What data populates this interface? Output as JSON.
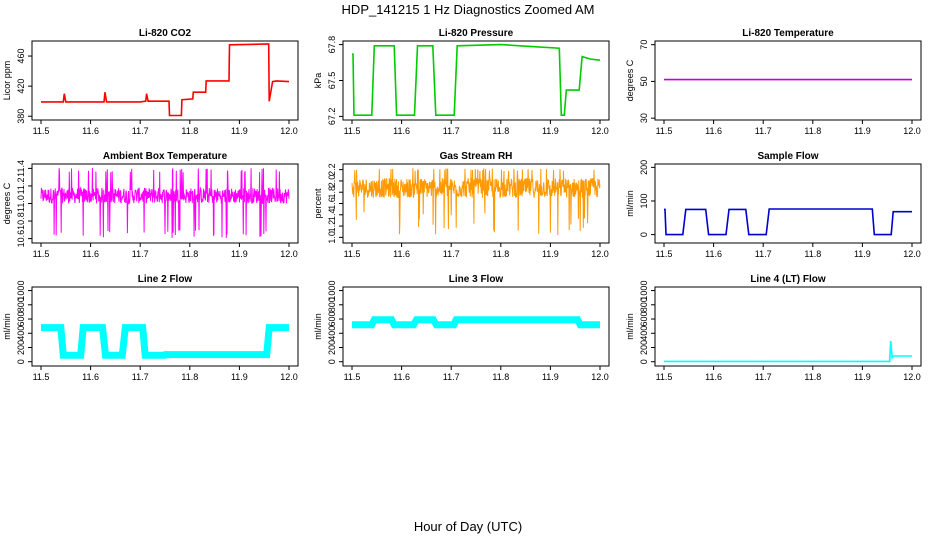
{
  "figure": {
    "title": "HDP_141215  1 Hz Diagnostics Zoomed AM",
    "xlabel": "Hour of Day (UTC)"
  },
  "chart_data": [
    {
      "type": "line",
      "title": "Li-820 CO2",
      "ylabel": "Licor ppm",
      "color": "#ff0000",
      "xlim": [
        11.5,
        12.0
      ],
      "ylim": [
        375,
        480
      ],
      "xticks": [
        11.5,
        11.6,
        11.7,
        11.8,
        11.9,
        12.0
      ],
      "xtick_labels": [
        "11.5",
        "11.6",
        "11.7",
        "11.8",
        "11.9",
        "12.0"
      ],
      "yticks": [
        380,
        420,
        460
      ],
      "ytick_labels": [
        "380",
        "420",
        "460"
      ],
      "x": [
        11.5,
        11.545,
        11.547,
        11.55,
        11.6,
        11.627,
        11.629,
        11.632,
        11.7,
        11.711,
        11.713,
        11.716,
        11.758,
        11.759,
        11.783,
        11.784,
        11.806,
        11.807,
        11.832,
        11.833,
        11.879,
        11.88,
        11.959,
        11.96,
        11.967,
        11.975,
        12.0
      ],
      "values": [
        399,
        399,
        410,
        399,
        399,
        399,
        412,
        399,
        399,
        400,
        410,
        400,
        400,
        381,
        381,
        402,
        403,
        412,
        412,
        427,
        427,
        475,
        476,
        400,
        426,
        427,
        426
      ]
    },
    {
      "type": "line",
      "title": "Li-820 Pressure",
      "ylabel": "kPa",
      "color": "#00cc00",
      "xlim": [
        11.5,
        12.0
      ],
      "ylim": [
        67.17,
        67.83
      ],
      "xticks": [
        11.5,
        11.6,
        11.7,
        11.8,
        11.9,
        12.0
      ],
      "xtick_labels": [
        "11.5",
        "11.6",
        "11.7",
        "11.8",
        "11.9",
        "12.0"
      ],
      "yticks": [
        67.2,
        67.5,
        67.8
      ],
      "ytick_labels": [
        "67.2",
        "67.5",
        "67.8"
      ],
      "x": [
        11.5,
        11.502,
        11.504,
        11.54,
        11.545,
        11.585,
        11.59,
        11.626,
        11.632,
        11.663,
        11.669,
        11.706,
        11.712,
        11.8,
        11.918,
        11.922,
        11.928,
        11.932,
        11.958,
        11.964,
        11.98,
        12.0
      ],
      "values": [
        67.72,
        67.72,
        67.21,
        67.21,
        67.79,
        67.79,
        67.21,
        67.21,
        67.79,
        67.79,
        67.21,
        67.21,
        67.79,
        67.8,
        67.77,
        67.21,
        67.21,
        67.42,
        67.42,
        67.7,
        67.68,
        67.67
      ]
    },
    {
      "type": "line",
      "title": "Li-820 Temperature",
      "ylabel": "degrees C",
      "color": "#cc00cc",
      "xlim": [
        11.5,
        12.0
      ],
      "ylim": [
        29,
        72
      ],
      "xticks": [
        11.5,
        11.6,
        11.7,
        11.8,
        11.9,
        12.0
      ],
      "xtick_labels": [
        "11.5",
        "11.6",
        "11.7",
        "11.8",
        "11.9",
        "12.0"
      ],
      "yticks": [
        30,
        50,
        70
      ],
      "ytick_labels": [
        "30",
        "50",
        "70"
      ],
      "x": [
        11.5,
        12.0
      ],
      "values": [
        51,
        51
      ]
    },
    {
      "type": "line",
      "title": "Ambient Box Temperature",
      "ylabel": "degrees C",
      "color": "#ff00ff",
      "xlim": [
        11.5,
        12.0
      ],
      "ylim": [
        10.55,
        11.45
      ],
      "xticks": [
        11.5,
        11.6,
        11.7,
        11.8,
        11.9,
        12.0
      ],
      "xtick_labels": [
        "11.5",
        "11.6",
        "11.7",
        "11.8",
        "11.9",
        "12.0"
      ],
      "yticks": [
        10.6,
        10.8,
        11.0,
        11.2,
        11.4
      ],
      "ytick_labels": [
        "10.6",
        "10.8",
        "11.0",
        "11.2",
        "11.4"
      ],
      "band": {
        "low": 11.0,
        "high": 11.18,
        "spike_low": 10.7,
        "spike_high": 11.38,
        "min": 10.6
      }
    },
    {
      "type": "line",
      "title": "Gas Stream RH",
      "ylabel": "percent",
      "color": "#ff9900",
      "xlim": [
        11.5,
        12.0
      ],
      "ylim": [
        0.9,
        2.3
      ],
      "xticks": [
        11.5,
        11.6,
        11.7,
        11.8,
        11.9,
        12.0
      ],
      "xtick_labels": [
        "11.5",
        "11.6",
        "11.7",
        "11.8",
        "11.9",
        "12.0"
      ],
      "yticks": [
        1.0,
        1.2,
        1.4,
        1.6,
        1.8,
        2.0,
        2.2
      ],
      "ytick_labels": [
        "1.0",
        "1.2",
        "1.4",
        "1.6",
        "1.8",
        "2.0",
        "2.2"
      ],
      "band": {
        "low": 1.7,
        "high": 2.05,
        "spike_low": 1.45,
        "spike_high": 2.2,
        "min": 1.0
      }
    },
    {
      "type": "line",
      "title": "Sample Flow",
      "ylabel": "ml/min",
      "color": "#0000cc",
      "xlim": [
        11.5,
        12.0
      ],
      "ylim": [
        -25,
        210
      ],
      "xticks": [
        11.5,
        11.6,
        11.7,
        11.8,
        11.9,
        12.0
      ],
      "xtick_labels": [
        "11.5",
        "11.6",
        "11.7",
        "11.8",
        "11.9",
        "12.0"
      ],
      "yticks": [
        0,
        100,
        200
      ],
      "ytick_labels": [
        "0",
        "100",
        "200"
      ],
      "x": [
        11.5,
        11.502,
        11.504,
        11.538,
        11.544,
        11.584,
        11.59,
        11.625,
        11.631,
        11.665,
        11.671,
        11.706,
        11.712,
        11.92,
        11.924,
        11.958,
        11.962,
        12.0
      ],
      "values": [
        75,
        75,
        0,
        0,
        75,
        75,
        0,
        0,
        75,
        75,
        0,
        0,
        76,
        76,
        0,
        0,
        68,
        68
      ]
    },
    {
      "type": "line",
      "title": "Line 2 Flow",
      "ylabel": "ml/min",
      "color": "#00ffff",
      "xlim": [
        11.5,
        12.0
      ],
      "ylim": [
        -60,
        1050
      ],
      "xticks": [
        11.5,
        11.6,
        11.7,
        11.8,
        11.9,
        12.0
      ],
      "xtick_labels": [
        "11.5",
        "11.6",
        "11.7",
        "11.8",
        "11.9",
        "12.0"
      ],
      "yticks": [
        0,
        200,
        400,
        600,
        800,
        1000
      ],
      "ytick_labels": [
        "0",
        "200",
        "400",
        "600",
        "800",
        "1000"
      ],
      "band_values": {
        "high": 490,
        "low": 70
      },
      "x": [
        11.5,
        11.54,
        11.545,
        11.58,
        11.585,
        11.624,
        11.63,
        11.664,
        11.67,
        11.705,
        11.71,
        11.75,
        11.751,
        11.955,
        11.96,
        12.0
      ],
      "values": [
        480,
        480,
        90,
        90,
        480,
        480,
        90,
        90,
        480,
        480,
        90,
        90,
        100,
        100,
        480,
        480
      ]
    },
    {
      "type": "line",
      "title": "Line 3 Flow",
      "ylabel": "ml/min",
      "color": "#00ffff",
      "xlim": [
        11.5,
        12.0
      ],
      "ylim": [
        -60,
        1050
      ],
      "xticks": [
        11.5,
        11.6,
        11.7,
        11.8,
        11.9,
        12.0
      ],
      "xtick_labels": [
        "11.5",
        "11.6",
        "11.7",
        "11.8",
        "11.9",
        "12.0"
      ],
      "yticks": [
        0,
        200,
        400,
        600,
        800,
        1000
      ],
      "ytick_labels": [
        "0",
        "200",
        "400",
        "600",
        "800",
        "1000"
      ],
      "x": [
        11.5,
        11.54,
        11.545,
        11.58,
        11.585,
        11.624,
        11.63,
        11.664,
        11.67,
        11.705,
        11.71,
        11.955,
        11.96,
        12.0
      ],
      "values": [
        520,
        520,
        590,
        590,
        520,
        520,
        590,
        590,
        520,
        520,
        590,
        590,
        520,
        520
      ]
    },
    {
      "type": "line",
      "title": "Line 4 (LT) Flow",
      "ylabel": "ml/min",
      "color": "#00ffff",
      "xlim": [
        11.5,
        12.0
      ],
      "ylim": [
        -60,
        1050
      ],
      "xticks": [
        11.5,
        11.6,
        11.7,
        11.8,
        11.9,
        12.0
      ],
      "xtick_labels": [
        "11.5",
        "11.6",
        "11.7",
        "11.8",
        "11.9",
        "12.0"
      ],
      "yticks": [
        0,
        200,
        400,
        600,
        800,
        1000
      ],
      "ytick_labels": [
        "0",
        "200",
        "400",
        "600",
        "800",
        "1000"
      ],
      "x": [
        11.5,
        11.955,
        11.957,
        11.96,
        11.962,
        11.97,
        12.0
      ],
      "values": [
        5,
        5,
        290,
        60,
        80,
        80,
        80
      ]
    }
  ]
}
